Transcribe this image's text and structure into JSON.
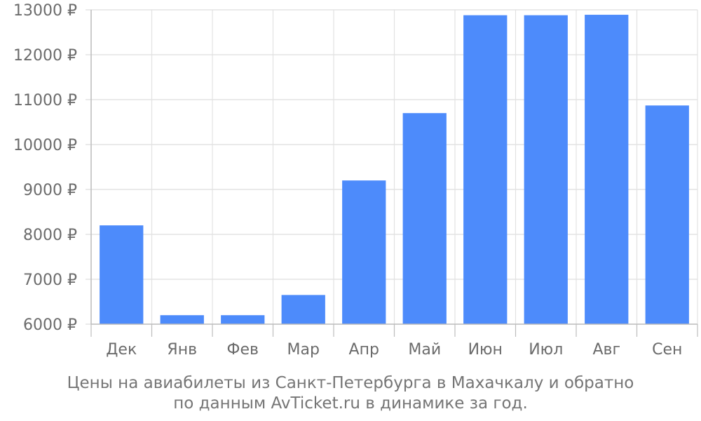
{
  "chart_data": {
    "type": "bar",
    "categories": [
      "Дек",
      "Янв",
      "Фев",
      "Мар",
      "Апр",
      "Май",
      "Июн",
      "Июл",
      "Авг",
      "Сен"
    ],
    "values": [
      8200,
      6200,
      6200,
      6650,
      9200,
      10700,
      12880,
      12880,
      12890,
      10870
    ],
    "ylim": [
      6000,
      13000
    ],
    "yticks": [
      6000,
      7000,
      8000,
      9000,
      10000,
      11000,
      12000,
      13000
    ],
    "ytick_suffix": " ₽",
    "bar_color": "#4d8bfb",
    "grid": true,
    "title": "",
    "xlabel": "",
    "ylabel": ""
  },
  "caption": {
    "line1": "Цены на авиабилеты из Санкт-Петербурга в Махачкалу и обратно",
    "line2": "по данным AvTicket.ru в динамике за год."
  }
}
